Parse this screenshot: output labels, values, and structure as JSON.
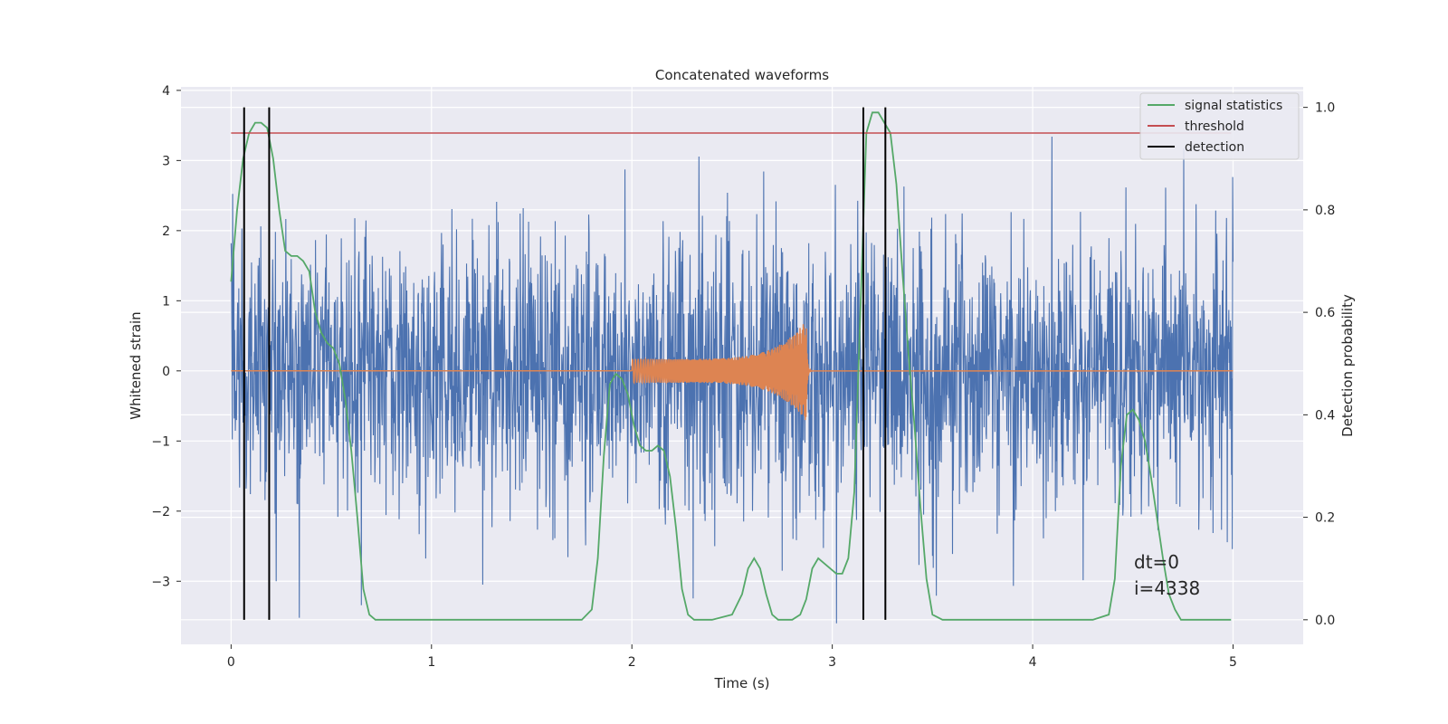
{
  "chart_data": {
    "type": "line",
    "title": "Concatenated waveforms",
    "xlabel": "Time (s)",
    "ylabel_left": "Whitened strain",
    "ylabel_right": "Detection probability",
    "xlim": [
      -0.25,
      5.35
    ],
    "ylim_left": [
      -3.9,
      4.05
    ],
    "ylim_right": [
      -0.048,
      1.04
    ],
    "x_ticks": [
      0,
      1,
      2,
      3,
      4,
      5
    ],
    "x_tick_labels": [
      "0",
      "1",
      "2",
      "3",
      "4",
      "5"
    ],
    "y_left_ticks": [
      -3,
      -2,
      -1,
      0,
      1,
      2,
      3,
      4
    ],
    "y_left_tick_labels": [
      "−3",
      "−2",
      "−1",
      "0",
      "1",
      "2",
      "3",
      "4"
    ],
    "y_right_ticks": [
      0.0,
      0.2,
      0.4,
      0.6,
      0.8,
      1.0
    ],
    "y_right_tick_labels": [
      "0.0",
      "0.2",
      "0.4",
      "0.6",
      "0.8",
      "1.0"
    ],
    "grid": true,
    "legend_position": "top-right",
    "legend": [
      "signal statistics",
      "threshold",
      "detection"
    ],
    "annotations": [
      "dt=0",
      "i=4338"
    ],
    "colors": {
      "strain": "#4c72b0",
      "injection": "#dd8452",
      "signal_statistics": "#55a868",
      "threshold": "#c44e52",
      "detection": "#000000",
      "plot_background": "#eaeaf2",
      "grid": "#ffffff"
    },
    "series": [
      {
        "name": "signal statistics",
        "axis": "right",
        "x": [
          0.0,
          0.03,
          0.06,
          0.09,
          0.12,
          0.15,
          0.18,
          0.21,
          0.24,
          0.27,
          0.3,
          0.33,
          0.36,
          0.39,
          0.42,
          0.45,
          0.48,
          0.51,
          0.54,
          0.57,
          0.6,
          0.63,
          0.66,
          0.69,
          0.72,
          0.75,
          0.8,
          1.0,
          1.5,
          1.75,
          1.8,
          1.83,
          1.86,
          1.89,
          1.92,
          1.95,
          1.98,
          2.01,
          2.04,
          2.07,
          2.1,
          2.13,
          2.16,
          2.19,
          2.22,
          2.25,
          2.28,
          2.31,
          2.34,
          2.4,
          2.5,
          2.55,
          2.58,
          2.61,
          2.64,
          2.67,
          2.7,
          2.73,
          2.8,
          2.84,
          2.87,
          2.9,
          2.93,
          2.96,
          2.99,
          3.02,
          3.05,
          3.08,
          3.11,
          3.14,
          3.17,
          3.2,
          3.23,
          3.26,
          3.29,
          3.32,
          3.35,
          3.38,
          3.41,
          3.44,
          3.47,
          3.5,
          3.55,
          3.6,
          3.75,
          4.0,
          4.3,
          4.38,
          4.41,
          4.44,
          4.47,
          4.5,
          4.53,
          4.56,
          4.59,
          4.62,
          4.65,
          4.68,
          4.71,
          4.74,
          4.8,
          4.9,
          4.99
        ],
        "y": [
          0.66,
          0.8,
          0.9,
          0.95,
          0.97,
          0.97,
          0.96,
          0.9,
          0.8,
          0.72,
          0.71,
          0.71,
          0.7,
          0.68,
          0.6,
          0.56,
          0.54,
          0.53,
          0.5,
          0.43,
          0.33,
          0.2,
          0.06,
          0.01,
          0.0,
          0.0,
          0.0,
          0.0,
          0.0,
          0.0,
          0.02,
          0.12,
          0.32,
          0.46,
          0.48,
          0.47,
          0.44,
          0.38,
          0.34,
          0.33,
          0.33,
          0.34,
          0.33,
          0.28,
          0.18,
          0.06,
          0.01,
          0.0,
          0.0,
          0.0,
          0.01,
          0.05,
          0.1,
          0.12,
          0.1,
          0.05,
          0.01,
          0.0,
          0.0,
          0.01,
          0.04,
          0.1,
          0.12,
          0.11,
          0.1,
          0.09,
          0.09,
          0.12,
          0.25,
          0.6,
          0.95,
          0.99,
          0.99,
          0.97,
          0.95,
          0.85,
          0.68,
          0.52,
          0.38,
          0.22,
          0.08,
          0.01,
          0.0,
          0.0,
          0.0,
          0.0,
          0.0,
          0.01,
          0.08,
          0.3,
          0.4,
          0.41,
          0.39,
          0.35,
          0.28,
          0.2,
          0.12,
          0.05,
          0.02,
          0.0,
          0.0,
          0.0,
          0.0
        ]
      },
      {
        "name": "threshold",
        "axis": "right",
        "x": [
          0.0,
          4.99
        ],
        "y": [
          0.95,
          0.95
        ]
      },
      {
        "name": "detection",
        "axis": "right",
        "x": [
          0.065,
          0.19,
          3.155,
          3.265
        ],
        "y_range": [
          0.0,
          1.0
        ]
      },
      {
        "name": "",
        "axis": "left",
        "description_values": {
          "x_range": [
            0.0,
            5.0
          ],
          "typical_amplitude": 1.0,
          "max": 3.7,
          "min": -3.6
        }
      },
      {
        "name": "",
        "axis": "left",
        "x_range": [
          0.0,
          5.0
        ],
        "chirp_start": 2.0,
        "chirp_end": 2.87,
        "chirp_start_amplitude": 0.17,
        "chirp_peak_amplitude": 0.72
      }
    ]
  }
}
